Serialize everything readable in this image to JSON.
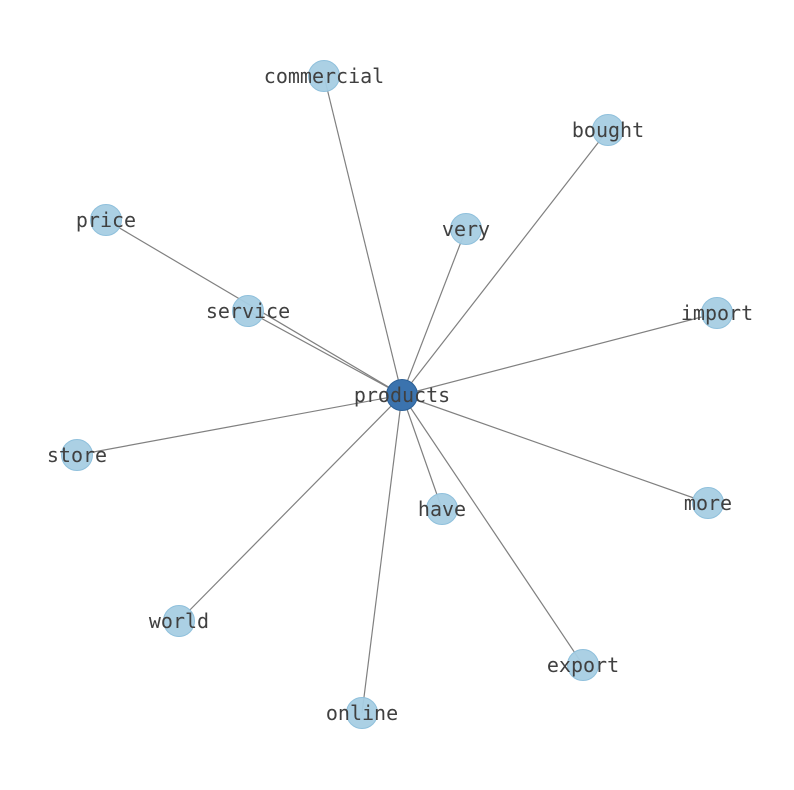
{
  "diagram": {
    "type": "network",
    "center": "products",
    "colors": {
      "center_node": "#3b73ae",
      "leaf_node": "#a6cde3",
      "edge": "#808080",
      "label": "#404040"
    },
    "nodes": [
      "products",
      "commercial",
      "bought",
      "price",
      "very",
      "service",
      "import",
      "store",
      "have",
      "more",
      "world",
      "export",
      "online"
    ],
    "edges": [
      [
        "products",
        "commercial"
      ],
      [
        "products",
        "bought"
      ],
      [
        "products",
        "price"
      ],
      [
        "products",
        "very"
      ],
      [
        "products",
        "service"
      ],
      [
        "products",
        "import"
      ],
      [
        "products",
        "store"
      ],
      [
        "products",
        "have"
      ],
      [
        "products",
        "more"
      ],
      [
        "products",
        "world"
      ],
      [
        "products",
        "export"
      ],
      [
        "products",
        "online"
      ]
    ]
  }
}
